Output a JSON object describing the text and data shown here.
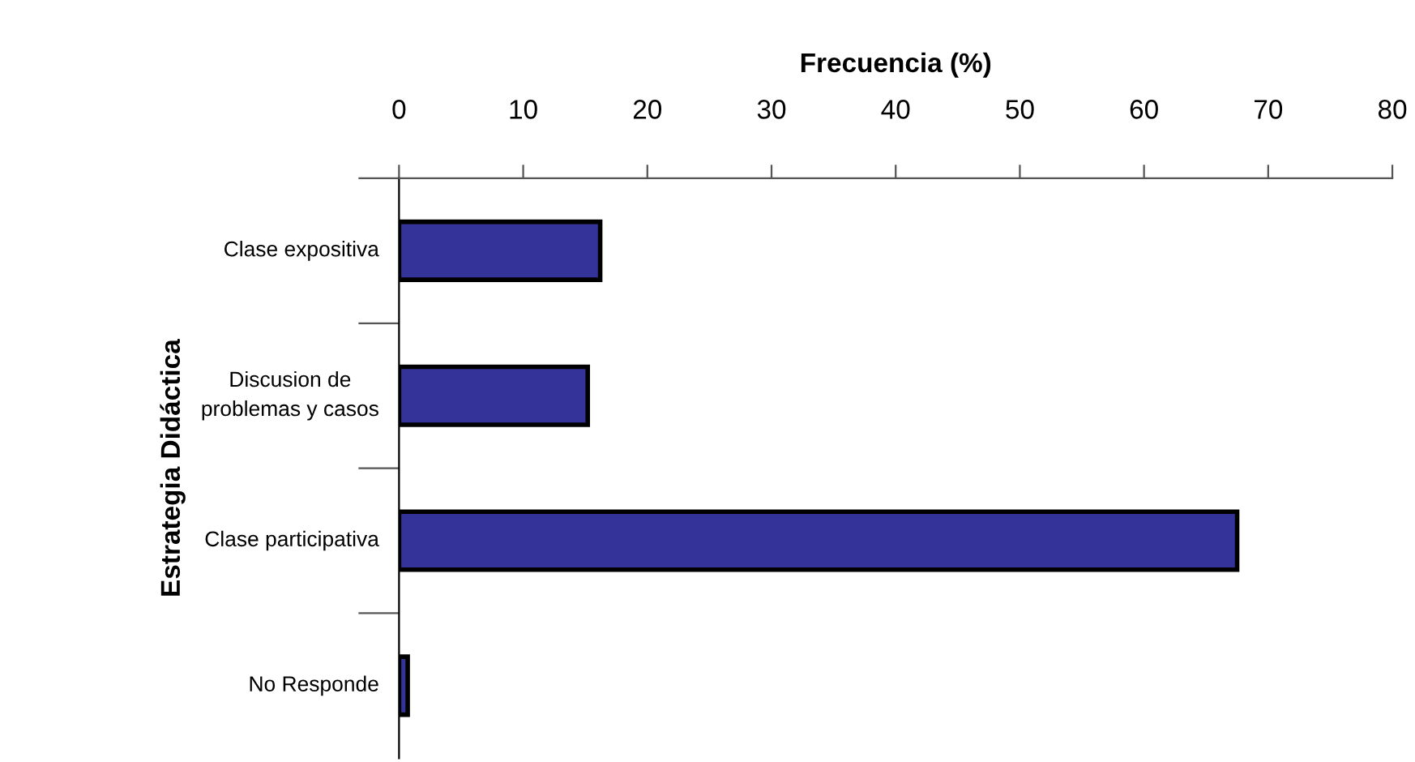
{
  "chart_data": {
    "type": "bar",
    "orientation": "horizontal",
    "xlabel": "Frecuencia (%)",
    "ylabel": "Estrategia Didáctica",
    "categories": [
      "Clase expositiva",
      "Discusion de\nproblemas y casos",
      "Clase participativa",
      "No Responde"
    ],
    "values": [
      16.2,
      15.2,
      67.5,
      0.7
    ],
    "color": "#333399",
    "xlim": [
      0,
      80
    ],
    "xticks": [
      0,
      10,
      20,
      30,
      40,
      50,
      60,
      70,
      80
    ],
    "grid": false
  }
}
